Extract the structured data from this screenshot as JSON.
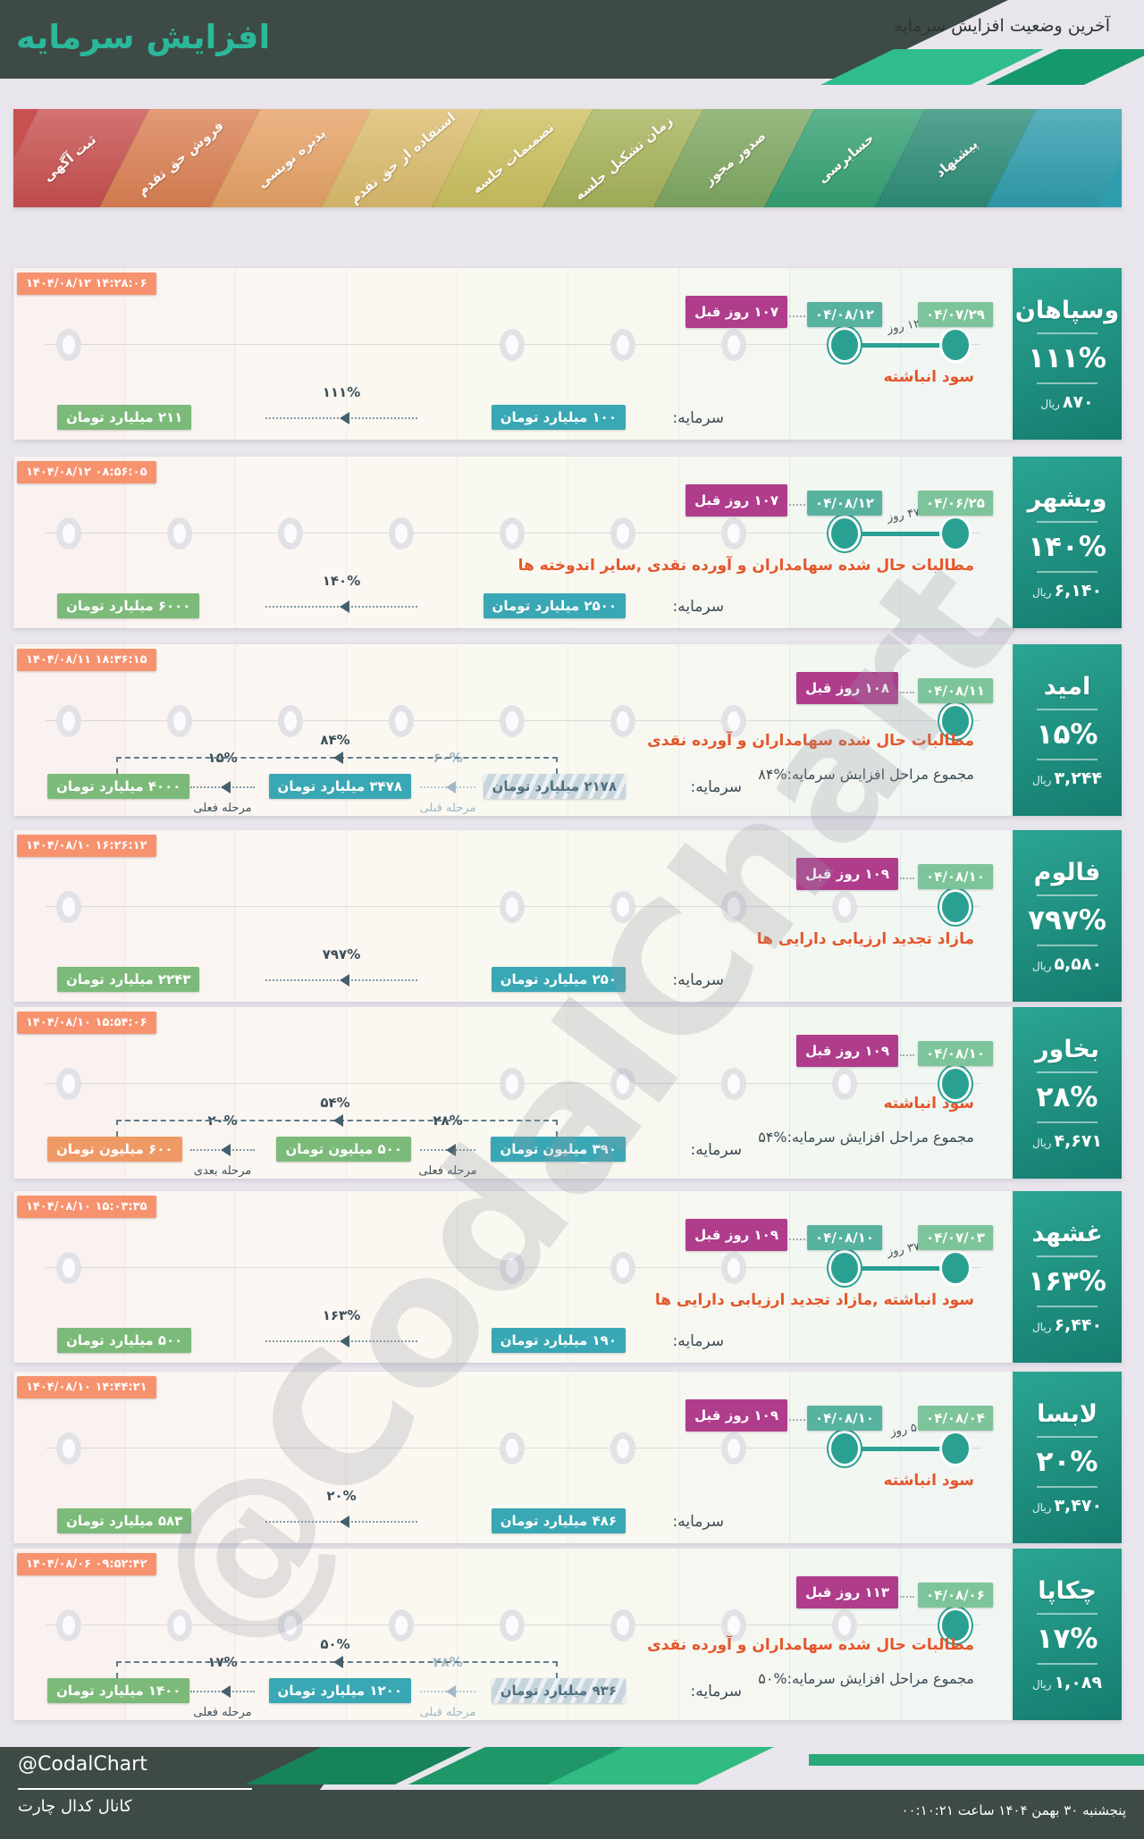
{
  "header": {
    "title": "افزایش سرمایه",
    "subtitle": "آخرین وضعیت افزایش سرمایه"
  },
  "stages": [
    {
      "label": "ثبت آگهی",
      "color": "#c8504f"
    },
    {
      "label": "فروش حق تقدم",
      "color": "#dc8154"
    },
    {
      "label": "پذیره نویسی",
      "color": "#e7a266"
    },
    {
      "label": "استفاده از حق تقدم",
      "color": "#dcbc6d"
    },
    {
      "label": "تصمیمات جلسه",
      "color": "#cbc05e"
    },
    {
      "label": "زمان تشکیل جلسه",
      "color": "#a7b35a"
    },
    {
      "label": "صدور مجوز",
      "color": "#7fa862"
    },
    {
      "label": "حسابرسی",
      "color": "#35a173"
    },
    {
      "label": "پیشنهاد",
      "color": "#2d8d78"
    },
    {
      "label": "",
      "color": "#2f9dad"
    }
  ],
  "capital_label": "سرمایه:",
  "rows": [
    {
      "company": "وسپاهان",
      "percent": "۱۱۱%",
      "price": "۸۷۰",
      "currency": "ریال",
      "timestamp": "۱۴۰۴/۰۸/۱۲ ۱۴:۲۸:۰۶",
      "days_ago": "۱۰۷ روز قبل",
      "current_date": "۰۴/۰۸/۱۲",
      "proposal_date": "۰۴/۰۷/۲۹",
      "days_between": "۱۲ روز",
      "description": "سود انباشته",
      "total_text": null,
      "total_pct": null,
      "gray_cols": [
        1,
        5,
        6,
        7
      ],
      "chain": {
        "steps": [
          {
            "value": "۱۰۰ میلیارد تومان",
            "style": "teal"
          },
          {
            "value": "۲۱۱ میلیارد تومان",
            "style": "green"
          }
        ],
        "arrows": [
          {
            "pct": "۱۱۱%",
            "label": null,
            "muted": false
          }
        ],
        "bracket_pct": null
      }
    },
    {
      "company": "وبشهر",
      "percent": "۱۴۰%",
      "price": "۶,۱۴۰",
      "currency": "ریال",
      "timestamp": "۱۴۰۴/۰۸/۱۲ ۰۸:۵۶:۰۵",
      "days_ago": "۱۰۷ روز قبل",
      "current_date": "۰۴/۰۸/۱۲",
      "proposal_date": "۰۴/۰۶/۲۵",
      "days_between": "۴۷ روز",
      "description": "مطالبات حال شده سهامداران و آورده نقدی ,سایر اندوخته ها",
      "total_text": null,
      "total_pct": null,
      "gray_cols": [
        1,
        2,
        3,
        4,
        5,
        6,
        7
      ],
      "chain": {
        "steps": [
          {
            "value": "۲۵۰۰ میلیارد تومان",
            "style": "teal"
          },
          {
            "value": "۶۰۰۰ میلیارد تومان",
            "style": "green"
          }
        ],
        "arrows": [
          {
            "pct": "۱۴۰%",
            "label": null,
            "muted": false
          }
        ],
        "bracket_pct": null
      }
    },
    {
      "company": "امید",
      "percent": "۱۵%",
      "price": "۳,۲۴۴",
      "currency": "ریال",
      "timestamp": "۱۴۰۴/۰۸/۱۱ ۱۸:۳۶:۱۵",
      "days_ago": "۱۰۸ روز قبل",
      "current_date": "۰۴/۰۸/۱۱",
      "proposal_date": null,
      "days_between": null,
      "description": "مطالبات حال شده سهامداران و آورده نقدی",
      "total_text": "مجموع مراحل افزایش سرمایه:",
      "total_pct": "۸۴%",
      "gray_cols": [
        1,
        2,
        3,
        4,
        5,
        6,
        7
      ],
      "chain": {
        "steps": [
          {
            "value": "۲۱۷۸ میلیارد تومان",
            "style": "hatched"
          },
          {
            "value": "۳۴۷۸ میلیارد تومان",
            "style": "teal"
          },
          {
            "value": "۴۰۰۰ میلیارد تومان",
            "style": "green"
          }
        ],
        "arrows": [
          {
            "pct": "۶۰%",
            "label": "مرحله قبلی",
            "muted": true
          },
          {
            "pct": "۱۵%",
            "label": "مرحله فعلی",
            "muted": false
          }
        ],
        "bracket_pct": "۸۴%"
      }
    },
    {
      "company": "فالوم",
      "percent": "۷۹۷%",
      "price": "۵,۵۸۰",
      "currency": "ریال",
      "timestamp": "۱۴۰۴/۰۸/۱۰ ۱۶:۲۶:۱۲",
      "days_ago": "۱۰۹ روز قبل",
      "current_date": "۰۴/۰۸/۱۰",
      "proposal_date": null,
      "days_between": null,
      "description": "مازاد تجدید ارزیابی دارایی ها",
      "total_text": null,
      "total_pct": null,
      "gray_cols": [
        1,
        5,
        6,
        7,
        8
      ],
      "chain": {
        "steps": [
          {
            "value": "۲۵۰ میلیارد تومان",
            "style": "teal"
          },
          {
            "value": "۲۲۴۳ میلیارد تومان",
            "style": "green"
          }
        ],
        "arrows": [
          {
            "pct": "۷۹۷%",
            "label": null,
            "muted": false
          }
        ],
        "bracket_pct": null
      }
    },
    {
      "company": "بخاور",
      "percent": "۲۸%",
      "price": "۴,۶۷۱",
      "currency": "ریال",
      "timestamp": "۱۴۰۴/۰۸/۱۰ ۱۵:۵۴:۰۶",
      "days_ago": "۱۰۹ روز قبل",
      "current_date": "۰۴/۰۸/۱۰",
      "proposal_date": null,
      "days_between": null,
      "description": "سود انباشته",
      "total_text": "مجموع مراحل افزایش سرمایه:",
      "total_pct": "۵۴%",
      "gray_cols": [
        1,
        5,
        6,
        7,
        8
      ],
      "chain": {
        "steps": [
          {
            "value": "۳۹۰ میلیون تومان",
            "style": "teal"
          },
          {
            "value": "۵۰۰ میلیون تومان",
            "style": "green"
          },
          {
            "value": "۶۰۰ میلیون تومان",
            "style": "orange"
          }
        ],
        "arrows": [
          {
            "pct": "۲۸%",
            "label": "مرحله فعلی",
            "muted": false
          },
          {
            "pct": "۲۰%",
            "label": "مرحله بعدی",
            "muted": false
          }
        ],
        "bracket_pct": "۵۴%"
      }
    },
    {
      "company": "غشهد",
      "percent": "۱۶۳%",
      "price": "۶,۴۴۰",
      "currency": "ریال",
      "timestamp": "۱۴۰۴/۰۸/۱۰ ۱۵:۰۳:۳۵",
      "days_ago": "۱۰۹ روز قبل",
      "current_date": "۰۴/۰۸/۱۰",
      "proposal_date": "۰۴/۰۷/۰۳",
      "days_between": "۳۷ روز",
      "description": "سود انباشته ,مازاد تجدید ارزیابی دارایی ها",
      "total_text": null,
      "total_pct": null,
      "gray_cols": [
        1,
        5,
        6,
        7
      ],
      "chain": {
        "steps": [
          {
            "value": "۱۹۰ میلیارد تومان",
            "style": "teal"
          },
          {
            "value": "۵۰۰ میلیارد تومان",
            "style": "green"
          }
        ],
        "arrows": [
          {
            "pct": "۱۶۳%",
            "label": null,
            "muted": false
          }
        ],
        "bracket_pct": null
      }
    },
    {
      "company": "لابسا",
      "percent": "۲۰%",
      "price": "۳,۴۷۰",
      "currency": "ریال",
      "timestamp": "۱۴۰۴/۰۸/۱۰ ۱۴:۴۴:۲۱",
      "days_ago": "۱۰۹ روز قبل",
      "current_date": "۰۴/۰۸/۱۰",
      "proposal_date": "۰۴/۰۸/۰۴",
      "days_between": "۵ روز",
      "description": "سود انباشته",
      "total_text": null,
      "total_pct": null,
      "gray_cols": [
        1,
        5,
        6,
        7
      ],
      "chain": {
        "steps": [
          {
            "value": "۴۸۶ میلیارد تومان",
            "style": "teal"
          },
          {
            "value": "۵۸۳ میلیارد تومان",
            "style": "green"
          }
        ],
        "arrows": [
          {
            "pct": "۲۰%",
            "label": null,
            "muted": false
          }
        ],
        "bracket_pct": null
      }
    },
    {
      "company": "چکاپا",
      "percent": "۱۷%",
      "price": "۱,۰۸۹",
      "currency": "ریال",
      "timestamp": "۱۴۰۴/۰۸/۰۶ ۰۹:۵۲:۴۲",
      "days_ago": "۱۱۳ روز قبل",
      "current_date": "۰۴/۰۸/۰۶",
      "proposal_date": null,
      "days_between": null,
      "description": "مطالبات حال شده سهامداران و آورده نقدی",
      "total_text": "مجموع مراحل افزایش سرمایه:",
      "total_pct": "۵۰%",
      "gray_cols": [
        1,
        2,
        3,
        4,
        5,
        6,
        7,
        8
      ],
      "chain": {
        "steps": [
          {
            "value": "۹۳۶ میلیارد تومان",
            "style": "hatched"
          },
          {
            "value": "۱۲۰۰ میلیارد تومان",
            "style": "teal"
          },
          {
            "value": "۱۴۰۰ میلیارد تومان",
            "style": "green"
          }
        ],
        "arrows": [
          {
            "pct": "۲۸%",
            "label": "مرحله قبلی",
            "muted": true
          },
          {
            "pct": "۱۷%",
            "label": "مرحله فعلی",
            "muted": false
          }
        ],
        "bracket_pct": "۵۰%"
      }
    }
  ],
  "watermark": "@CodalChart",
  "footer": {
    "handle": "@CodalChart",
    "channel": "کانال کدال چارت",
    "datetime": "پنجشنبه ۳۰ بهمن ۱۴۰۴ ساعت ۰۰:۱۰:۲۱"
  },
  "colors": {
    "accent_teal": "#2bb79a",
    "header_dark": "#3e4a45",
    "timestamp_badge": "#f7926f",
    "days_ago_badge": "#b03c8c",
    "current_date_badge": "#58b2a0",
    "proposal_date_badge": "#7ec49a",
    "active_circle": "#2aa092",
    "description_text": "#e4562a",
    "footer_greens": [
      "#17835a",
      "#1f9768",
      "#31ba82",
      "#2aa878"
    ]
  }
}
